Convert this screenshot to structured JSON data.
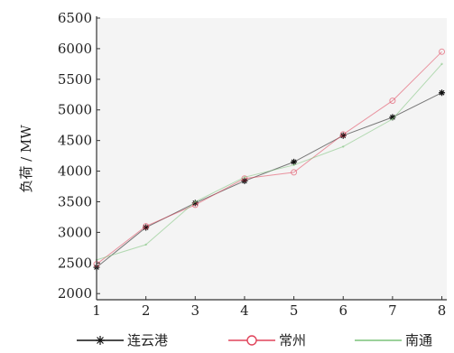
{
  "chart_data": {
    "type": "line",
    "title": "",
    "xlabel": "",
    "ylabel": "负荷 / MW",
    "x": [
      1,
      2,
      3,
      4,
      5,
      6,
      7,
      8
    ],
    "x_ticks": [
      "1",
      "2",
      "3",
      "4",
      "5",
      "6",
      "7",
      "8"
    ],
    "y_ticks": [
      "2000",
      "2500",
      "3000",
      "3500",
      "4000",
      "4500",
      "5000",
      "5500",
      "6000",
      "6500"
    ],
    "xlim": [
      1,
      8.1
    ],
    "ylim": [
      1900,
      6500
    ],
    "grid": false,
    "legend_position": "bottom",
    "series": [
      {
        "name": "连云港",
        "color": "#111111",
        "marker": "star",
        "values": [
          2430,
          3080,
          3480,
          3840,
          4150,
          4580,
          4880,
          5280
        ]
      },
      {
        "name": "常州",
        "color": "#e0435a",
        "marker": "circle",
        "values": [
          2480,
          3100,
          3450,
          3880,
          3980,
          4600,
          5150,
          5950
        ]
      },
      {
        "name": "南通",
        "color": "#7cc27a",
        "marker": "none",
        "values": [
          2550,
          2800,
          3500,
          3900,
          4100,
          4400,
          4850,
          5750
        ]
      }
    ]
  }
}
